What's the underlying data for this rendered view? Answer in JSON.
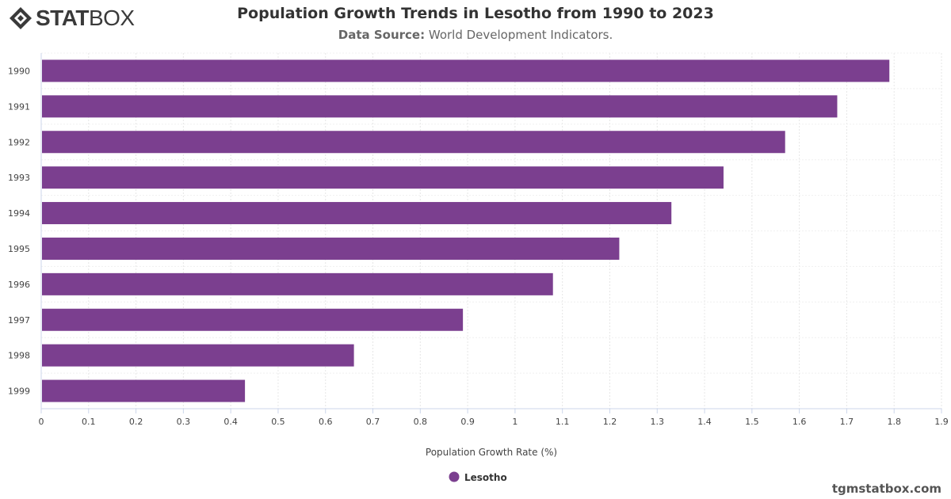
{
  "header": {
    "logo_bold": "STAT",
    "logo_light": "BOX",
    "title": "Population Growth Trends in Lesotho from 1990 to 2023",
    "source_label": "Data Source:",
    "source_text": "World Development Indicators."
  },
  "watermark": "tgmstatbox.com",
  "colors": {
    "bar": "#7b3f8f",
    "grid": "#e6e6e6",
    "axis": "#ccd6eb"
  },
  "chart_data": {
    "type": "bar",
    "orientation": "horizontal",
    "categories": [
      "1990",
      "1991",
      "1992",
      "1993",
      "1994",
      "1995",
      "1996",
      "1997",
      "1998",
      "1999"
    ],
    "series": [
      {
        "name": "Lesotho",
        "values": [
          1.79,
          1.68,
          1.57,
          1.44,
          1.33,
          1.22,
          1.08,
          0.89,
          0.66,
          0.43
        ]
      }
    ],
    "xlabel": "Population Growth Rate (%)",
    "ylabel": "",
    "xlim": [
      0,
      1.9
    ],
    "xticks": [
      "0",
      "0.1",
      "0.2",
      "0.3",
      "0.4",
      "0.5",
      "0.6",
      "0.7",
      "0.8",
      "0.9",
      "1",
      "1.1",
      "1.2",
      "1.3",
      "1.4",
      "1.5",
      "1.6",
      "1.7",
      "1.8",
      "1.9"
    ],
    "grid": true,
    "legend_position": "bottom-center"
  }
}
